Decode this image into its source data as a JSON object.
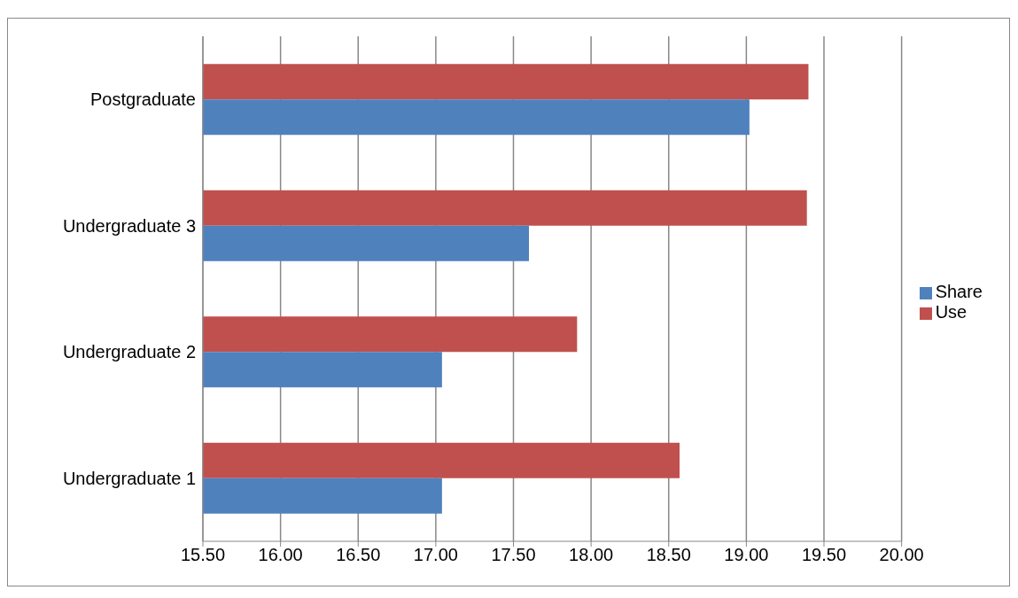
{
  "chart_data": {
    "type": "bar",
    "orientation": "horizontal",
    "categories": [
      "Postgraduate",
      "Undergraduate 3",
      "Undergraduate 2",
      "Undergraduate 1"
    ],
    "series": [
      {
        "name": "Use",
        "color": "#c0504d",
        "values": [
          19.4,
          19.39,
          17.91,
          18.57
        ]
      },
      {
        "name": "Share",
        "color": "#4f81bd",
        "values": [
          19.02,
          17.6,
          17.04,
          17.04
        ]
      }
    ],
    "xlim": [
      15.5,
      20
    ],
    "xticks": [
      {
        "value": 15.5,
        "label": "15.50"
      },
      {
        "value": 16,
        "label": "16.00"
      },
      {
        "value": 16.5,
        "label": "16.50"
      },
      {
        "value": 17,
        "label": "17.00"
      },
      {
        "value": 17.5,
        "label": "17.50"
      },
      {
        "value": 18,
        "label": "18.00"
      },
      {
        "value": 18.5,
        "label": "18.50"
      },
      {
        "value": 19,
        "label": "19.00"
      },
      {
        "value": 19.5,
        "label": "19.50"
      },
      {
        "value": 20,
        "label": "20.00"
      }
    ],
    "grid": "x",
    "legend": "right"
  }
}
